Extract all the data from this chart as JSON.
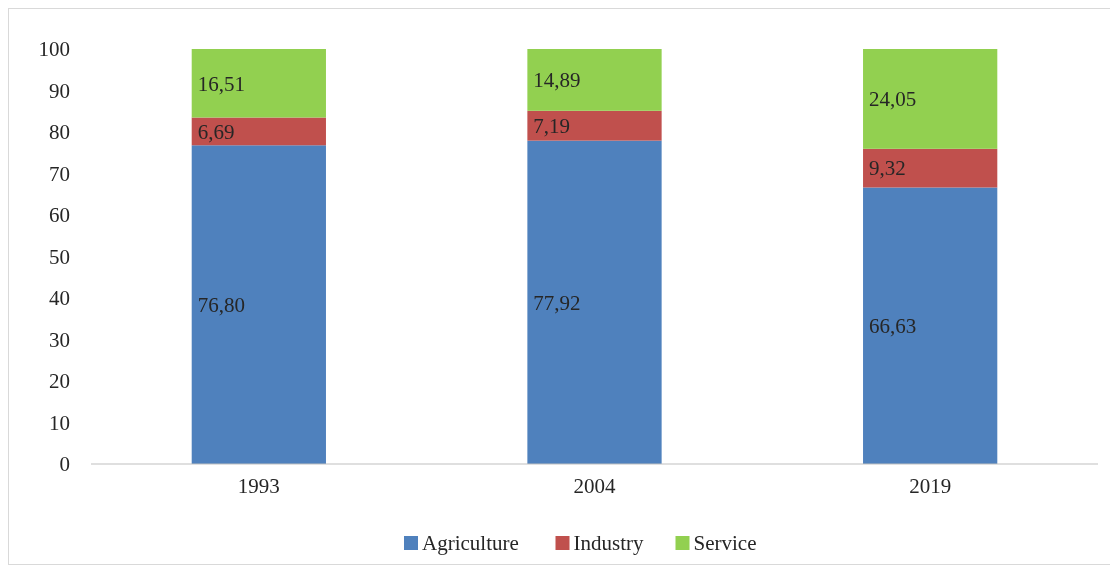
{
  "chart_data": {
    "type": "bar",
    "stacked": true,
    "categories": [
      "1993",
      "2004",
      "2019"
    ],
    "series": [
      {
        "name": "Agriculture",
        "color": "#4f81bd",
        "values": [
          76.8,
          77.92,
          66.63
        ],
        "value_labels": [
          "76,80",
          "77,92",
          "66,63"
        ]
      },
      {
        "name": "Industry",
        "color": "#c0504d",
        "values": [
          6.69,
          7.19,
          9.32
        ],
        "value_labels": [
          "6,69",
          "7,19",
          "9,32"
        ]
      },
      {
        "name": "Service",
        "color": "#92d050",
        "values": [
          16.51,
          14.89,
          24.05
        ],
        "value_labels": [
          "16,51",
          "14,89",
          "24,05"
        ]
      }
    ],
    "ylim": [
      0,
      100
    ],
    "yticks": [
      0,
      10,
      20,
      30,
      40,
      50,
      60,
      70,
      80,
      90,
      100
    ],
    "grid": false,
    "legend": "bottom"
  }
}
